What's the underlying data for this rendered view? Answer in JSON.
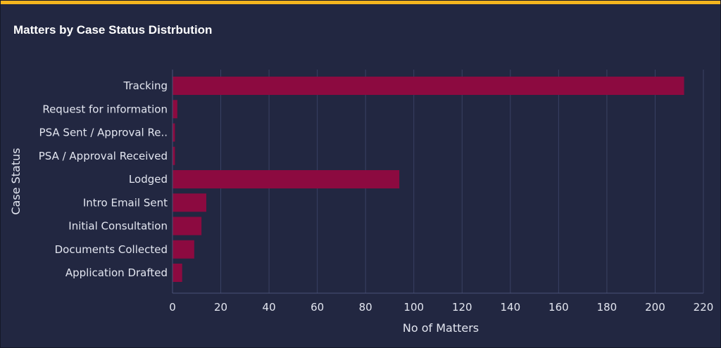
{
  "panel": {
    "title": "Matters by Case Status Distrbution"
  },
  "colors": {
    "background": "#222741",
    "accent": "#f4b51e",
    "bar": "#8c0a40",
    "grid": "#3a4163",
    "axis": "#4a5276",
    "text": "#e3e6f0"
  },
  "chart_data": {
    "type": "bar",
    "orientation": "horizontal",
    "categories": [
      "Tracking",
      "Request for information",
      "PSA Sent / Approval Re..",
      "PSA / Approval Received",
      "Lodged",
      "Intro Email Sent",
      "Initial Consultation",
      "Documents Collected",
      "Application Drafted"
    ],
    "values": [
      212,
      2,
      1,
      1,
      94,
      14,
      12,
      9,
      4
    ],
    "xlabel": "No of Matters",
    "ylabel": "Case Status",
    "xlim": [
      0,
      220
    ],
    "xticks": [
      0,
      20,
      40,
      60,
      80,
      100,
      120,
      140,
      160,
      180,
      200,
      220
    ],
    "xtick_labels": [
      "0",
      "20",
      "40",
      "60",
      "80",
      "100",
      "120",
      "140",
      "160",
      "180",
      "200",
      "220"
    ],
    "grid": true,
    "legend": "none"
  }
}
